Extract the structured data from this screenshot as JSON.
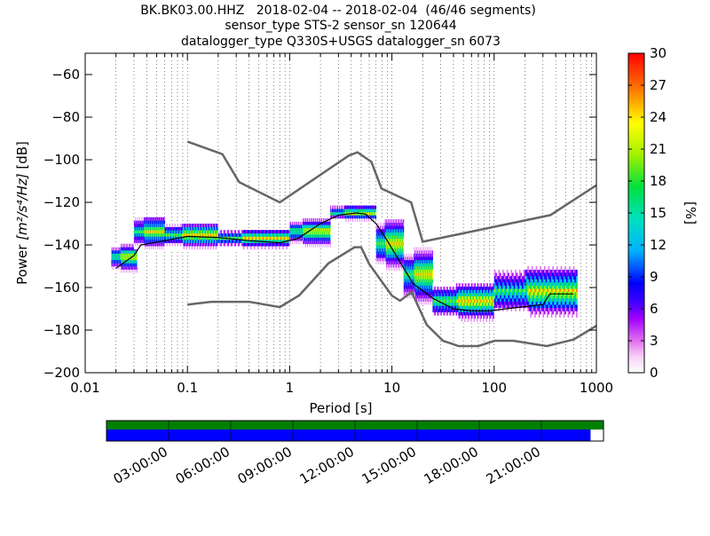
{
  "chart_data": {
    "type": "heatmap",
    "title_lines": [
      "BK.BK03.00.HHZ   2018-02-04 -- 2018-02-04  (46/46 segments)",
      "sensor_type STS-2 sensor_sn 120644",
      "datalogger_type Q330S+USGS datalogger_sn 6073"
    ],
    "xlabel": "Period [s]",
    "ylabel_prefix": "Power ",
    "ylabel_units": "[m²/s⁴/Hz]",
    "ylabel_suffix": " [dB]",
    "x_scale": "log",
    "xlim": [
      0.01,
      1000
    ],
    "ylim": [
      -200,
      -50
    ],
    "x_ticks": [
      {
        "value": 0.01,
        "label": "0.01"
      },
      {
        "value": 0.1,
        "label": "0.1"
      },
      {
        "value": 1,
        "label": "1"
      },
      {
        "value": 10,
        "label": "10"
      },
      {
        "value": 100,
        "label": "100"
      },
      {
        "value": 1000,
        "label": "1000"
      }
    ],
    "y_ticks": [
      -60,
      -80,
      -100,
      -120,
      -140,
      -160,
      -180,
      -200
    ],
    "grid": "dotted vertical at log minor ticks",
    "colorbar": {
      "label": "[%]",
      "range": [
        0,
        30
      ],
      "ticks": [
        0,
        3,
        6,
        9,
        12,
        15,
        18,
        21,
        24,
        27,
        30
      ],
      "colormap": "pqlx"
    },
    "noise_models": {
      "NHNM": [
        [
          0.1,
          -91.5
        ],
        [
          0.22,
          -97.4
        ],
        [
          0.32,
          -110.5
        ],
        [
          0.8,
          -120
        ],
        [
          3.8,
          -98
        ],
        [
          4.6,
          -96.5
        ],
        [
          6.3,
          -101
        ],
        [
          7.9,
          -113.5
        ],
        [
          15.4,
          -120
        ],
        [
          20,
          -138.5
        ],
        [
          354.8,
          -126
        ],
        [
          1000,
          -112
        ]
      ],
      "NLNM": [
        [
          0.1,
          -168
        ],
        [
          0.17,
          -166.7
        ],
        [
          0.4,
          -166.7
        ],
        [
          0.8,
          -169.2
        ],
        [
          1.24,
          -163.7
        ],
        [
          2.4,
          -148.6
        ],
        [
          4.3,
          -141.1
        ],
        [
          5,
          -141.1
        ],
        [
          6,
          -149
        ],
        [
          10,
          -163.8
        ],
        [
          12,
          -166.2
        ],
        [
          15.6,
          -162.1
        ],
        [
          21.9,
          -177.5
        ],
        [
          31.6,
          -185
        ],
        [
          45,
          -187.5
        ],
        [
          70,
          -187.5
        ],
        [
          101,
          -185
        ],
        [
          154,
          -185
        ],
        [
          328,
          -187.5
        ],
        [
          600,
          -184.4
        ],
        [
          1000,
          -178
        ]
      ]
    },
    "mean_curve": [
      [
        0.02,
        -151
      ],
      [
        0.03,
        -145
      ],
      [
        0.035,
        -140
      ],
      [
        0.06,
        -138
      ],
      [
        0.1,
        -136
      ],
      [
        0.2,
        -136.5
      ],
      [
        0.4,
        -138
      ],
      [
        0.8,
        -139
      ],
      [
        1.2,
        -137
      ],
      [
        2,
        -130
      ],
      [
        3,
        -126
      ],
      [
        4.5,
        -125
      ],
      [
        5.5,
        -125.5
      ],
      [
        7,
        -130
      ],
      [
        9,
        -138
      ],
      [
        12,
        -148
      ],
      [
        16,
        -158
      ],
      [
        25,
        -165
      ],
      [
        40,
        -170
      ],
      [
        60,
        -171
      ],
      [
        90,
        -171
      ],
      [
        130,
        -170
      ],
      [
        300,
        -168
      ],
      [
        350,
        -163
      ],
      [
        600,
        -163
      ]
    ],
    "density_bands": [
      {
        "period_range": [
          0.018,
          0.032
        ],
        "power_range": [
          -153,
          -140
        ]
      },
      {
        "period_range": [
          0.03,
          0.06
        ],
        "power_range": [
          -142,
          -127
        ]
      },
      {
        "period_range": [
          0.06,
          0.2
        ],
        "power_range": [
          -142,
          -130
        ]
      },
      {
        "period_range": [
          0.2,
          1.0
        ],
        "power_range": [
          -142,
          -133
        ]
      },
      {
        "period_range": [
          1.0,
          2.5
        ],
        "power_range": [
          -141,
          -128
        ]
      },
      {
        "period_range": [
          2.5,
          7.0
        ],
        "power_range": [
          -129,
          -122
        ]
      },
      {
        "period_range": [
          7.0,
          13.0
        ],
        "power_range": [
          -152,
          -128
        ]
      },
      {
        "period_range": [
          13.0,
          25.0
        ],
        "power_range": [
          -168,
          -142
        ]
      },
      {
        "period_range": [
          25.0,
          100.0
        ],
        "power_range": [
          -176,
          -158
        ]
      },
      {
        "period_range": [
          100.0,
          650.0
        ],
        "power_range": [
          -174,
          -151
        ]
      }
    ],
    "timeline": {
      "tick_labels": [
        "03:00:00",
        "06:00:00",
        "09:00:00",
        "12:00:00",
        "15:00:00",
        "18:00:00",
        "21:00:00"
      ],
      "coverage_fraction": 0.974,
      "colors": {
        "data_available": "#008000",
        "data_processed": "#0000ff"
      }
    }
  }
}
